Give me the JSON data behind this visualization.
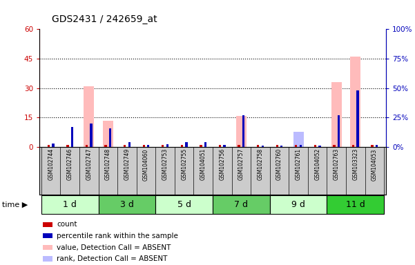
{
  "title": "GDS2431 / 242659_at",
  "samples": [
    "GSM102744",
    "GSM102746",
    "GSM102747",
    "GSM102748",
    "GSM102749",
    "GSM104060",
    "GSM102753",
    "GSM102755",
    "GSM104051",
    "GSM102756",
    "GSM102757",
    "GSM102758",
    "GSM102760",
    "GSM102761",
    "GSM104052",
    "GSM102763",
    "GSM103323",
    "GSM104053"
  ],
  "count_values": [
    1,
    1,
    1,
    1,
    1,
    1,
    1,
    1,
    1,
    1,
    1,
    1,
    1,
    1,
    1,
    1,
    1,
    1
  ],
  "percentile_values": [
    3,
    17,
    20,
    16,
    4,
    2,
    2.5,
    4,
    4,
    2,
    27,
    1,
    1,
    2,
    1,
    27,
    48,
    2
  ],
  "value_absent": [
    0,
    0,
    31,
    13.5,
    0,
    0,
    0,
    0,
    0,
    0,
    16,
    0,
    0,
    3,
    0,
    33,
    46,
    0
  ],
  "rank_absent": [
    0,
    0,
    0,
    0,
    0,
    0,
    0,
    0,
    0,
    0,
    0,
    0,
    0,
    13,
    0,
    0,
    0,
    0
  ],
  "groups": [
    {
      "label": "1 d",
      "start": 0,
      "end": 3,
      "color": "#ccffcc"
    },
    {
      "label": "3 d",
      "start": 3,
      "end": 6,
      "color": "#66cc66"
    },
    {
      "label": "5 d",
      "start": 6,
      "end": 9,
      "color": "#ccffcc"
    },
    {
      "label": "7 d",
      "start": 9,
      "end": 12,
      "color": "#66cc66"
    },
    {
      "label": "9 d",
      "start": 12,
      "end": 15,
      "color": "#ccffcc"
    },
    {
      "label": "11 d",
      "start": 15,
      "end": 18,
      "color": "#33cc33"
    }
  ],
  "ylim_left": [
    0,
    60
  ],
  "ylim_right": [
    0,
    100
  ],
  "yticks_left": [
    0,
    15,
    30,
    45,
    60
  ],
  "yticks_right": [
    0,
    25,
    50,
    75,
    100
  ],
  "ytick_labels_left": [
    "0",
    "15",
    "30",
    "45",
    "60"
  ],
  "ytick_labels_right": [
    "0%",
    "25%",
    "50%",
    "75%",
    "100%"
  ],
  "count_color": "#cc0000",
  "percentile_color": "#0000bb",
  "value_absent_color": "#ffbbbb",
  "rank_absent_color": "#bbbbff",
  "bg_color": "#ffffff",
  "grid_color": "#000000",
  "tick_label_color_left": "#cc0000",
  "tick_label_color_right": "#0000bb",
  "sample_bg_color": "#cccccc",
  "legend_items": [
    {
      "label": "count",
      "color": "#cc0000"
    },
    {
      "label": "percentile rank within the sample",
      "color": "#0000bb"
    },
    {
      "label": "value, Detection Call = ABSENT",
      "color": "#ffbbbb"
    },
    {
      "label": "rank, Detection Call = ABSENT",
      "color": "#bbbbff"
    }
  ]
}
